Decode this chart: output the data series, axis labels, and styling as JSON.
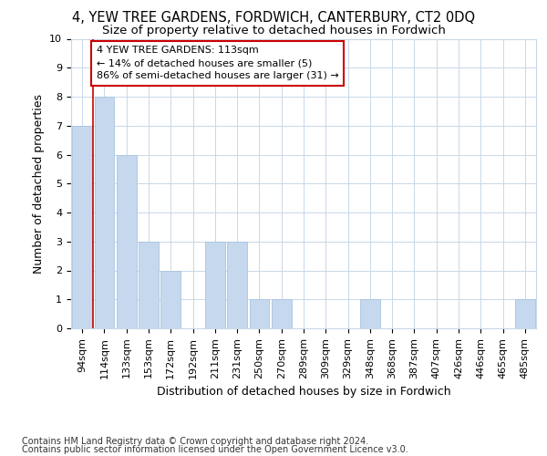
{
  "title": "4, YEW TREE GARDENS, FORDWICH, CANTERBURY, CT2 0DQ",
  "subtitle": "Size of property relative to detached houses in Fordwich",
  "xlabel": "Distribution of detached houses by size in Fordwich",
  "ylabel": "Number of detached properties",
  "categories": [
    "94sqm",
    "114sqm",
    "133sqm",
    "153sqm",
    "172sqm",
    "192sqm",
    "211sqm",
    "231sqm",
    "250sqm",
    "270sqm",
    "289sqm",
    "309sqm",
    "329sqm",
    "348sqm",
    "368sqm",
    "387sqm",
    "407sqm",
    "426sqm",
    "446sqm",
    "465sqm",
    "485sqm"
  ],
  "values": [
    7,
    8,
    6,
    3,
    2,
    0,
    3,
    3,
    1,
    1,
    0,
    0,
    0,
    1,
    0,
    0,
    0,
    0,
    0,
    0,
    1
  ],
  "bar_color": "#c5d8ee",
  "bar_edge_color": "#a8c4e0",
  "subject_line_color": "#cc0000",
  "annotation_text": "4 YEW TREE GARDENS: 113sqm\n← 14% of detached houses are smaller (5)\n86% of semi-detached houses are larger (31) →",
  "annotation_box_color": "#cc0000",
  "ylim": [
    0,
    10
  ],
  "yticks": [
    0,
    1,
    2,
    3,
    4,
    5,
    6,
    7,
    8,
    9,
    10
  ],
  "footer_line1": "Contains HM Land Registry data © Crown copyright and database right 2024.",
  "footer_line2": "Contains public sector information licensed under the Open Government Licence v3.0.",
  "bg_color": "#ffffff",
  "plot_bg_color": "#ffffff",
  "grid_color": "#c8d8e8",
  "title_fontsize": 10.5,
  "subtitle_fontsize": 9.5,
  "axis_label_fontsize": 9,
  "tick_fontsize": 8,
  "annotation_fontsize": 8,
  "footer_fontsize": 7
}
